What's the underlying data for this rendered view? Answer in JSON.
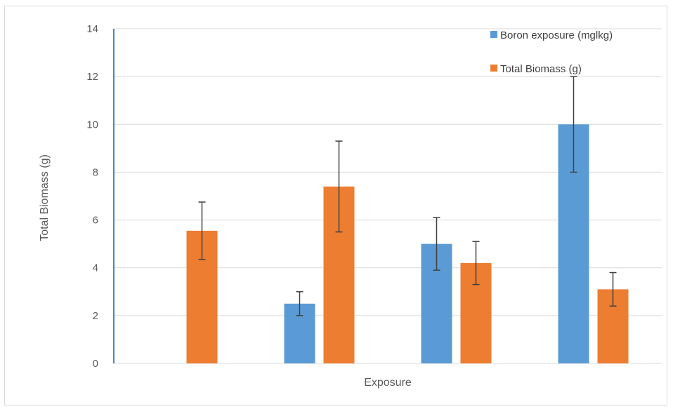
{
  "chart_data": {
    "type": "bar",
    "xlabel": "Exposure",
    "ylabel": "Total Biomass (g)",
    "ylim": [
      0,
      14
    ],
    "yticks": [
      0,
      2,
      4,
      6,
      8,
      10,
      12,
      14
    ],
    "grid": true,
    "legend_position": "top-right",
    "categories": [
      "",
      "",
      "",
      ""
    ],
    "series": [
      {
        "name": "Boron exposure (mglkg)",
        "color": "#5b9bd5",
        "values": [
          0,
          2.5,
          5,
          10
        ],
        "error": [
          0,
          0.5,
          1.1,
          2.0
        ]
      },
      {
        "name": "Total Biomass (g)",
        "color": "#ed7d31",
        "values": [
          5.55,
          7.4,
          4.2,
          3.1
        ],
        "error": [
          1.2,
          1.9,
          0.9,
          0.7
        ]
      }
    ]
  }
}
